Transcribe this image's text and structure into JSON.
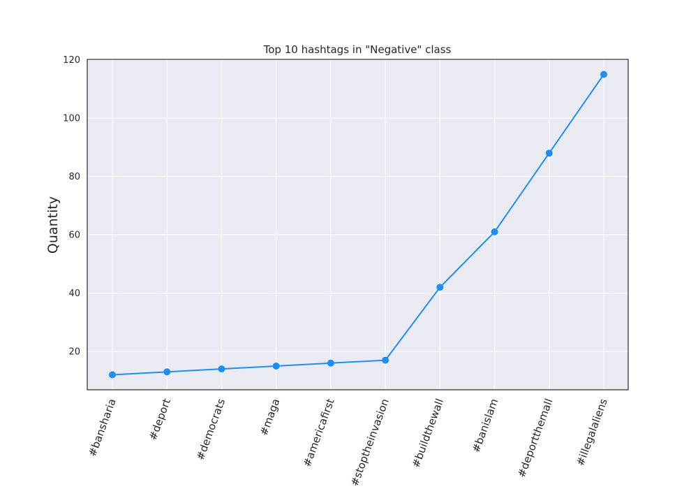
{
  "chart_data": {
    "type": "line",
    "title": "Top 10 hashtags in \"Negative\" class",
    "xlabel": "",
    "ylabel": "Quantity",
    "categories": [
      "#bansharia",
      "#deport",
      "#democrats",
      "#maga",
      "#americafirst",
      "#stoptheinvasion",
      "#buildthewall",
      "#banislam",
      "#deportthemall",
      "#illegalaliens"
    ],
    "series": [
      {
        "values": [
          12,
          13,
          14,
          15,
          16,
          17,
          42,
          61,
          88,
          115
        ]
      }
    ],
    "ylim": [
      6.85,
      120.15
    ],
    "yticks": [
      "20",
      "40",
      "60",
      "80",
      "100",
      "120"
    ],
    "grid": true,
    "legend": "none",
    "colors": {
      "line": "#1f8ef1",
      "plot_bg": "#eaeaf2",
      "grid": "#ffffff"
    }
  }
}
